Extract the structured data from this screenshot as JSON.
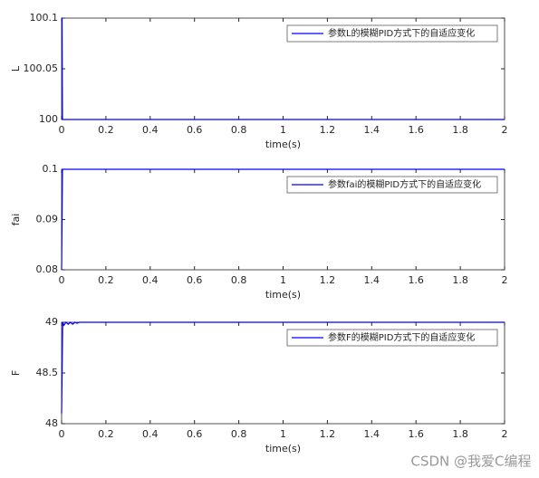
{
  "chart_data": [
    {
      "type": "line",
      "xlabel": "time(s)",
      "ylabel": "L",
      "series": [
        {
          "name": "参数L的模糊PID方式下的自适应变化",
          "color": "#0000ff",
          "x": [
            0,
            0.002,
            0.004,
            2
          ],
          "values": [
            100.1,
            100.1,
            100,
            100
          ]
        }
      ],
      "xlim": [
        0,
        2
      ],
      "xticks": [
        0,
        0.2,
        0.4,
        0.6,
        0.8,
        1,
        1.2,
        1.4,
        1.6,
        1.8,
        2
      ],
      "ylim": [
        100,
        100.1
      ],
      "yticks": [
        100,
        100.05,
        100.1
      ],
      "legend": "northeast"
    },
    {
      "type": "line",
      "xlabel": "time(s)",
      "ylabel": "fai",
      "series": [
        {
          "name": "参数fai的模糊PID方式下的自适应变化",
          "color": "#0000ff",
          "x": [
            0,
            0.004,
            0.01,
            2
          ],
          "values": [
            0.08,
            0.1,
            0.1,
            0.1
          ]
        }
      ],
      "xlim": [
        0,
        2
      ],
      "xticks": [
        0,
        0.2,
        0.4,
        0.6,
        0.8,
        1,
        1.2,
        1.4,
        1.6,
        1.8,
        2
      ],
      "ylim": [
        0.08,
        0.1
      ],
      "yticks": [
        0.08,
        0.09,
        0.1
      ],
      "legend": "northeast"
    },
    {
      "type": "line",
      "xlabel": "time(s)",
      "ylabel": "F",
      "series": [
        {
          "name": "参数F的模糊PID方式下的自适应变化",
          "color": "#0000ff",
          "x": [
            0,
            0.005,
            0.01,
            0.02,
            0.03,
            0.04,
            0.05,
            0.06,
            0.07,
            0.08,
            0.09,
            2
          ],
          "values": [
            48.1,
            49,
            48.97,
            49,
            48.98,
            49,
            48.98,
            49,
            48.99,
            49,
            49,
            49
          ]
        }
      ],
      "xlim": [
        0,
        2
      ],
      "xticks": [
        0,
        0.2,
        0.4,
        0.6,
        0.8,
        1,
        1.2,
        1.4,
        1.6,
        1.8,
        2
      ],
      "ylim": [
        48,
        49
      ],
      "yticks": [
        48,
        48.5,
        49
      ],
      "legend": "northeast"
    }
  ],
  "watermark": "CSDN @我爱C编程"
}
